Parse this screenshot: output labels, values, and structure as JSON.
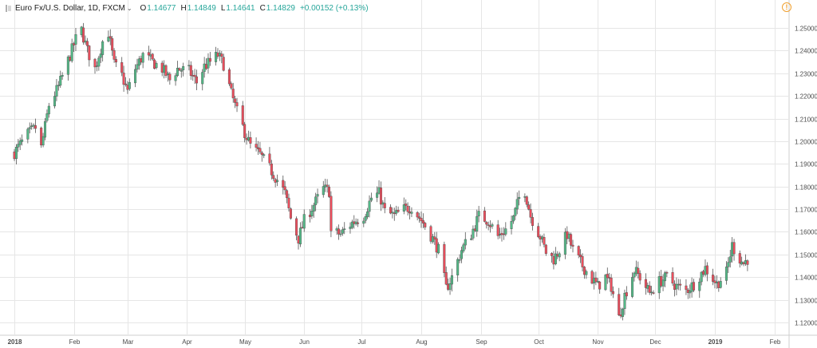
{
  "header": {
    "symbol": "Euro Fx/U.S. Dollar, 1D, FXCM",
    "open_label": "O",
    "open": "1.14677",
    "high_label": "H",
    "high": "1.14849",
    "low_label": "L",
    "low": "1.14641",
    "close_label": "C",
    "close": "1.14829",
    "change": "+0.00152 (+0.13%)"
  },
  "colors": {
    "up": "#53b987",
    "down": "#eb4d5c",
    "wick": "#555555",
    "grid": "#e6e6e6"
  },
  "icons": {
    "alert": "warning-circle-icon",
    "symbol": "symbol-icon"
  },
  "chart_data": {
    "type": "candlestick",
    "symbol": "EURUSD",
    "interval": "1D",
    "ylim": [
      1.115,
      1.26
    ],
    "y_ticks": [
      "1.25000",
      "1.24000",
      "1.23000",
      "1.22000",
      "1.21000",
      "1.20000",
      "1.19000",
      "1.18000",
      "1.17000",
      "1.16000",
      "1.15000",
      "1.14000",
      "1.13000",
      "1.12000"
    ],
    "x_ticks": [
      "2018",
      "Feb",
      "Mar",
      "Apr",
      "May",
      "Jun",
      "Jul",
      "Aug",
      "Sep",
      "Oct",
      "Nov",
      "Dec",
      "2019",
      "Feb"
    ],
    "x_tick_dates": [
      "2018-01-01",
      "2018-02-01",
      "2018-03-01",
      "2018-04-01",
      "2018-05-01",
      "2018-06-01",
      "2018-07-01",
      "2018-08-01",
      "2018-09-01",
      "2018-10-01",
      "2018-11-01",
      "2018-12-01",
      "2019-01-01",
      "2019-02-01"
    ],
    "x_range": [
      "2018-01-01",
      "2019-02-22"
    ],
    "grid": true,
    "axis_position": "right",
    "approx_close_path": [
      [
        "2018-01-01",
        1.195
      ],
      [
        "2018-01-08",
        1.203
      ],
      [
        "2018-01-12",
        1.206
      ],
      [
        "2018-01-15",
        1.197
      ],
      [
        "2018-01-19",
        1.216
      ],
      [
        "2018-01-24",
        1.224
      ],
      [
        "2018-01-30",
        1.238
      ],
      [
        "2018-02-02",
        1.245
      ],
      [
        "2018-02-05",
        1.249
      ],
      [
        "2018-02-08",
        1.24
      ],
      [
        "2018-02-12",
        1.232
      ],
      [
        "2018-02-16",
        1.244
      ],
      [
        "2018-02-19",
        1.248
      ],
      [
        "2018-02-22",
        1.234
      ],
      [
        "2018-02-26",
        1.229
      ],
      [
        "2018-03-01",
        1.222
      ],
      [
        "2018-03-05",
        1.232
      ],
      [
        "2018-03-09",
        1.238
      ],
      [
        "2018-03-14",
        1.235
      ],
      [
        "2018-03-19",
        1.232
      ],
      [
        "2018-03-23",
        1.227
      ],
      [
        "2018-03-27",
        1.232
      ],
      [
        "2018-04-02",
        1.231
      ],
      [
        "2018-04-06",
        1.226
      ],
      [
        "2018-04-10",
        1.233
      ],
      [
        "2018-04-13",
        1.235
      ],
      [
        "2018-04-17",
        1.238
      ],
      [
        "2018-04-20",
        1.234
      ],
      [
        "2018-04-24",
        1.221
      ],
      [
        "2018-04-27",
        1.213
      ],
      [
        "2018-05-01",
        1.204
      ],
      [
        "2018-05-04",
        1.198
      ],
      [
        "2018-05-09",
        1.194
      ],
      [
        "2018-05-14",
        1.188
      ],
      [
        "2018-05-18",
        1.183
      ],
      [
        "2018-05-22",
        1.177
      ],
      [
        "2018-05-25",
        1.166
      ],
      [
        "2018-05-29",
        1.157
      ],
      [
        "2018-06-01",
        1.165
      ],
      [
        "2018-06-06",
        1.172
      ],
      [
        "2018-06-11",
        1.179
      ],
      [
        "2018-06-14",
        1.178
      ],
      [
        "2018-06-15",
        1.16
      ],
      [
        "2018-06-20",
        1.159
      ],
      [
        "2018-06-26",
        1.164
      ],
      [
        "2018-07-02",
        1.167
      ],
      [
        "2018-07-06",
        1.175
      ],
      [
        "2018-07-10",
        1.177
      ],
      [
        "2018-07-13",
        1.169
      ],
      [
        "2018-07-18",
        1.167
      ],
      [
        "2018-07-23",
        1.17
      ],
      [
        "2018-07-27",
        1.171
      ],
      [
        "2018-08-02",
        1.164
      ],
      [
        "2018-08-07",
        1.157
      ],
      [
        "2018-08-10",
        1.152
      ],
      [
        "2018-08-14",
        1.135
      ],
      [
        "2018-08-17",
        1.14
      ],
      [
        "2018-08-22",
        1.152
      ],
      [
        "2018-08-27",
        1.159
      ],
      [
        "2018-08-31",
        1.167
      ],
      [
        "2018-09-05",
        1.165
      ],
      [
        "2018-09-10",
        1.158
      ],
      [
        "2018-09-14",
        1.161
      ],
      [
        "2018-09-18",
        1.166
      ],
      [
        "2018-09-21",
        1.175
      ],
      [
        "2018-09-24",
        1.178
      ],
      [
        "2018-09-27",
        1.167
      ],
      [
        "2018-10-02",
        1.158
      ],
      [
        "2018-10-05",
        1.151
      ],
      [
        "2018-10-09",
        1.148
      ],
      [
        "2018-10-12",
        1.152
      ],
      [
        "2018-10-16",
        1.159
      ],
      [
        "2018-10-19",
        1.152
      ],
      [
        "2018-10-24",
        1.145
      ],
      [
        "2018-10-29",
        1.139
      ],
      [
        "2018-11-01",
        1.136
      ],
      [
        "2018-11-05",
        1.14
      ],
      [
        "2018-11-08",
        1.136
      ],
      [
        "2018-11-12",
        1.122
      ],
      [
        "2018-11-15",
        1.132
      ],
      [
        "2018-11-20",
        1.143
      ],
      [
        "2018-11-23",
        1.14
      ],
      [
        "2018-11-28",
        1.133
      ],
      [
        "2018-12-03",
        1.138
      ],
      [
        "2018-12-07",
        1.14
      ],
      [
        "2018-12-12",
        1.136
      ],
      [
        "2018-12-17",
        1.134
      ],
      [
        "2018-12-21",
        1.137
      ],
      [
        "2018-12-27",
        1.144
      ],
      [
        "2019-01-02",
        1.137
      ],
      [
        "2019-01-07",
        1.142
      ],
      [
        "2019-01-10",
        1.154
      ],
      [
        "2019-01-14",
        1.148
      ],
      [
        "2019-01-16",
        1.146
      ],
      [
        "2019-01-18",
        1.148
      ]
    ]
  }
}
